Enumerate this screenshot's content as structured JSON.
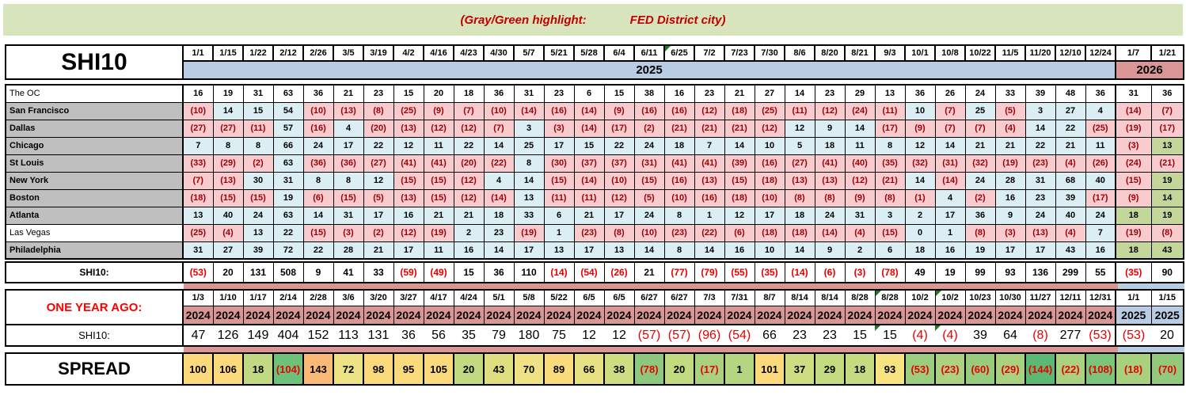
{
  "banner": {
    "part1": "(Gray/Green highlight:",
    "part2": "FED District city)"
  },
  "main": {
    "title": "SHI10",
    "dates": [
      "1/1",
      "1/15",
      "1/22",
      "2/12",
      "2/26",
      "3/5",
      "3/19",
      "4/2",
      "4/16",
      "4/23",
      "4/30",
      "5/7",
      "5/21",
      "5/28",
      "6/4",
      "6/11",
      "6/25",
      "7/2",
      "7/23",
      "7/30",
      "8/6",
      "8/20",
      "8/21",
      "9/3",
      "10/1",
      "10/8",
      "10/22",
      "11/5",
      "11/20",
      "12/10",
      "12/24",
      "1/7",
      "1/21"
    ],
    "note_date_indexes": [
      16
    ],
    "year_left": "2025",
    "year_right": "2026",
    "rows": [
      {
        "label": "The OC",
        "fed": false,
        "plain": true,
        "values": [
          "16",
          "19",
          "31",
          "63",
          "36",
          "21",
          "23",
          "15",
          "20",
          "18",
          "36",
          "31",
          "23",
          "6",
          "15",
          "38",
          "16",
          "23",
          "21",
          "27",
          "14",
          "23",
          "29",
          "13",
          "36",
          "26",
          "24",
          "33",
          "39",
          "48",
          "36",
          "31",
          "36"
        ]
      },
      {
        "label": "San Francisco",
        "fed": true,
        "plain": false,
        "values": [
          "(10)",
          "14",
          "15",
          "54",
          "(10)",
          "(13)",
          "(8)",
          "(25)",
          "(9)",
          "(7)",
          "(10)",
          "(14)",
          "(16)",
          "(14)",
          "(9)",
          "(16)",
          "(16)",
          "(12)",
          "(18)",
          "(25)",
          "(11)",
          "(12)",
          "(24)",
          "(11)",
          "10",
          "(7)",
          "25",
          "(5)",
          "3",
          "27",
          "4",
          "(14)",
          "(7)"
        ]
      },
      {
        "label": "Dallas",
        "fed": true,
        "plain": false,
        "values": [
          "(27)",
          "(27)",
          "(11)",
          "57",
          "(16)",
          "4",
          "(20)",
          "(13)",
          "(12)",
          "(12)",
          "(7)",
          "3",
          "(3)",
          "(14)",
          "(17)",
          "(2)",
          "(21)",
          "(21)",
          "(21)",
          "(12)",
          "12",
          "9",
          "14",
          "(17)",
          "(9)",
          "(7)",
          "(7)",
          "(4)",
          "14",
          "22",
          "(25)",
          "(19)",
          "(17)"
        ]
      },
      {
        "label": "Chicago",
        "fed": true,
        "plain": false,
        "values": [
          "7",
          "8",
          "8",
          "66",
          "24",
          "17",
          "22",
          "12",
          "11",
          "22",
          "14",
          "25",
          "17",
          "15",
          "22",
          "24",
          "18",
          "7",
          "14",
          "10",
          "5",
          "18",
          "11",
          "8",
          "12",
          "14",
          "21",
          "21",
          "22",
          "21",
          "11",
          "(3)",
          "13"
        ]
      },
      {
        "label": "St Louis",
        "fed": true,
        "plain": false,
        "values": [
          "(33)",
          "(29)",
          "(2)",
          "63",
          "(36)",
          "(36)",
          "(27)",
          "(41)",
          "(41)",
          "(20)",
          "(22)",
          "8",
          "(30)",
          "(37)",
          "(37)",
          "(31)",
          "(41)",
          "(41)",
          "(39)",
          "(16)",
          "(27)",
          "(41)",
          "(40)",
          "(35)",
          "(32)",
          "(31)",
          "(32)",
          "(19)",
          "(23)",
          "(4)",
          "(26)",
          "(24)",
          "(21)"
        ]
      },
      {
        "label": "New York",
        "fed": true,
        "plain": false,
        "values": [
          "(7)",
          "(13)",
          "30",
          "31",
          "8",
          "8",
          "12",
          "(15)",
          "(15)",
          "(12)",
          "4",
          "14",
          "(15)",
          "(14)",
          "(10)",
          "(15)",
          "(16)",
          "(13)",
          "(15)",
          "(18)",
          "(13)",
          "(13)",
          "(12)",
          "(21)",
          "14",
          "(14)",
          "24",
          "28",
          "31",
          "68",
          "40",
          "(15)",
          "19"
        ]
      },
      {
        "label": "Boston",
        "fed": true,
        "plain": false,
        "values": [
          "(18)",
          "(15)",
          "(15)",
          "19",
          "(6)",
          "(15)",
          "(5)",
          "(13)",
          "(15)",
          "(12)",
          "(14)",
          "13",
          "(11)",
          "(11)",
          "(12)",
          "(5)",
          "(10)",
          "(16)",
          "(18)",
          "(10)",
          "(8)",
          "(8)",
          "(9)",
          "(8)",
          "(1)",
          "4",
          "(2)",
          "16",
          "23",
          "39",
          "(17)",
          "(9)",
          "14"
        ]
      },
      {
        "label": "Atlanta",
        "fed": true,
        "plain": false,
        "values": [
          "13",
          "40",
          "24",
          "63",
          "14",
          "31",
          "17",
          "16",
          "21",
          "21",
          "18",
          "33",
          "6",
          "21",
          "17",
          "24",
          "8",
          "1",
          "12",
          "17",
          "18",
          "24",
          "31",
          "3",
          "2",
          "17",
          "36",
          "9",
          "24",
          "40",
          "24",
          "18",
          "19"
        ]
      },
      {
        "label": "Las Vegas",
        "fed": false,
        "plain": false,
        "values": [
          "(25)",
          "(4)",
          "13",
          "22",
          "(15)",
          "(3)",
          "(2)",
          "(12)",
          "(19)",
          "2",
          "23",
          "(19)",
          "1",
          "(23)",
          "(8)",
          "(10)",
          "(23)",
          "(22)",
          "(6)",
          "(18)",
          "(18)",
          "(14)",
          "(4)",
          "(15)",
          "0",
          "1",
          "(8)",
          "(3)",
          "(13)",
          "(4)",
          "7",
          "(19)",
          "(8)"
        ]
      },
      {
        "label": "Philadelphia",
        "fed": true,
        "plain": false,
        "values": [
          "31",
          "27",
          "39",
          "72",
          "22",
          "28",
          "21",
          "17",
          "11",
          "16",
          "14",
          "17",
          "13",
          "17",
          "13",
          "14",
          "8",
          "14",
          "16",
          "10",
          "14",
          "9",
          "2",
          "6",
          "18",
          "16",
          "19",
          "17",
          "17",
          "43",
          "16",
          "18",
          "43"
        ]
      }
    ],
    "total_label": "SHI10:",
    "totals": [
      "(53)",
      "20",
      "131",
      "508",
      "9",
      "41",
      "33",
      "(59)",
      "(49)",
      "15",
      "36",
      "110",
      "(14)",
      "(54)",
      "(26)",
      "21",
      "(77)",
      "(79)",
      "(55)",
      "(35)",
      "(14)",
      "(6)",
      "(3)",
      "(78)",
      "49",
      "19",
      "99",
      "93",
      "136",
      "299",
      "55",
      "(35)",
      "90"
    ]
  },
  "year_ago": {
    "label": "ONE YEAR AGO:",
    "dates": [
      "1/3",
      "1/10",
      "1/17",
      "2/14",
      "2/28",
      "3/6",
      "3/20",
      "3/27",
      "4/17",
      "4/24",
      "5/1",
      "5/8",
      "5/22",
      "6/5",
      "6/5",
      "6/27",
      "6/27",
      "7/3",
      "7/31",
      "8/7",
      "8/14",
      "8/14",
      "8/28",
      "8/28",
      "10/2",
      "10/2",
      "10/23",
      "10/30",
      "11/27",
      "12/11",
      "12/31",
      "1/1",
      "1/15"
    ],
    "years_left": "2024",
    "years_right": "2025",
    "note_date_indexes": [
      23,
      25
    ],
    "note_value_indexes": [
      23,
      25
    ],
    "total_label": "SHI10:",
    "values": [
      "47",
      "126",
      "149",
      "404",
      "152",
      "113",
      "131",
      "36",
      "56",
      "35",
      "79",
      "180",
      "75",
      "12",
      "12",
      "(57)",
      "(57)",
      "(96)",
      "(54)",
      "66",
      "23",
      "23",
      "15",
      "15",
      "(4)",
      "(4)",
      "39",
      "64",
      "(8)",
      "277",
      "(53)",
      "(53)",
      "20"
    ]
  },
  "spread": {
    "label": "SPREAD",
    "values": [
      "100",
      "106",
      "18",
      "(104)",
      "143",
      "72",
      "98",
      "95",
      "105",
      "20",
      "43",
      "70",
      "89",
      "66",
      "38",
      "(78)",
      "20",
      "(17)",
      "1",
      "101",
      "37",
      "29",
      "18",
      "93",
      "(53)",
      "(23)",
      "(60)",
      "(29)",
      "(144)",
      "(22)",
      "(108)",
      "(18)",
      "(70)"
    ],
    "colors": [
      "#fcd97b",
      "#fcd97b",
      "#c1d980",
      "#6ec17a",
      "#fbb977",
      "#ede284",
      "#fcd97b",
      "#fbda7c",
      "#fcd97b",
      "#c1d980",
      "#dfdf82",
      "#eee284",
      "#fbdc7d",
      "#e8e184",
      "#cedd82",
      "#8cc97e",
      "#c2da80",
      "#a8d180",
      "#b5d580",
      "#fcd97b",
      "#cfdd82",
      "#c5db81",
      "#c6db81",
      "#f7e37f",
      "#9bcd7f",
      "#abd280",
      "#97cb7e",
      "#a8d180",
      "#5bb974",
      "#aad180",
      "#7ac47b",
      "#a7d07f",
      "#92c97d"
    ]
  },
  "colors": {
    "banner_bg": "#d7e4bc",
    "banner_text": "#c00000",
    "band_2025": "#b8cce4",
    "band_2026": "#d99694",
    "cell_negative_bg": "#f8cbce",
    "cell_negative_text": "#9c0006",
    "cell_positive_bg": "#daeef3",
    "cell_green_bg": "#c4d79b",
    "label_gray": "#bfbfbf",
    "total_negative_text": "#e90000",
    "note_triangle": "#1e7a1e"
  }
}
